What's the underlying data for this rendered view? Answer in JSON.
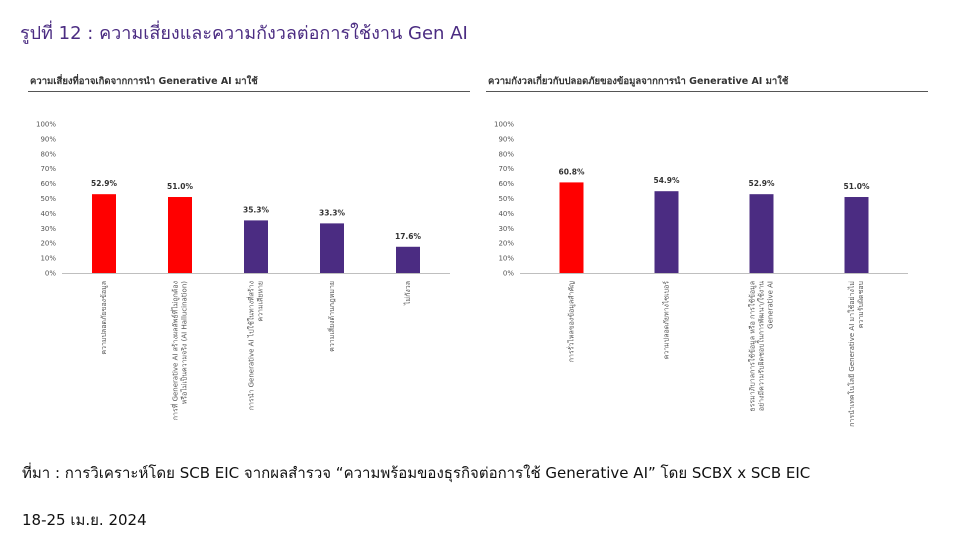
{
  "page": {
    "title": "รูปที่ 12 : ความเสี่ยงและความกังวลต่อการใช้งาน Gen AI",
    "source_line1": "ที่มา : การวิเคราะห์โดย SCB EIC จากผลสำรวจ “ความพร้อมของธุรกิจต่อการใช้ Generative AI” โดย SCBX x SCB EIC",
    "source_line2": "18-25 เม.ย. 2024"
  },
  "colors": {
    "highlight": "#ff0000",
    "base": "#4b2c82",
    "title": "#4b2c82"
  },
  "chart_data": [
    {
      "type": "bar",
      "title": "ความเสี่ยงที่อาจเกิดจากการนำ  Generative AI มาใช้",
      "categories": [
        "ความปลอดภัยของข้อมูล",
        "การที่ Generative AI สร้างผลลัพธ์ที่ไม่ถูกต้อง หรือไม่เป็นความจริง (AI Hallucination)",
        "การนำ Generative AI ไปใช้ในทางที่สร้าง ความเสียหาย",
        "ความเสี่ยงด้านกฎหมาย",
        "ไม่กังวล"
      ],
      "category_lines": [
        [
          "ความปลอดภัยของข้อมูล"
        ],
        [
          "การที่ Generative AI สร้างผลลัพธ์ที่ไม่ถูกต้อง",
          "หรือไม่เป็นความจริง (AI Hallucination)"
        ],
        [
          "การนำ Generative AI ไปใช้ในทางที่สร้าง",
          "ความเสียหาย"
        ],
        [
          "ความเสี่ยงด้านกฎหมาย"
        ],
        [
          "ไม่กังวล"
        ]
      ],
      "values": [
        52.9,
        51.0,
        35.3,
        33.3,
        17.6
      ],
      "labels": [
        "52.9%",
        "51.0%",
        "35.3%",
        "33.3%",
        "17.6%"
      ],
      "highlight": [
        true,
        true,
        false,
        false,
        false
      ],
      "yticks": [
        "0%",
        "10%",
        "20%",
        "30%",
        "40%",
        "50%",
        "60%",
        "70%",
        "80%",
        "90%",
        "100%"
      ],
      "ylim": [
        0,
        100
      ],
      "grid": false,
      "legend": "none"
    },
    {
      "type": "bar",
      "title": "ความกังวลเกี่ยวกับปลอดภัยของข้อมูลจากการนำ  Generative AI มาใช้",
      "categories": [
        "การรั่วไหลของข้อมูลสำคัญ",
        "ความปลอดภัยทางไซเบอร์",
        "ธรรมาภิบาลการใช้ข้อมูล หรือ การใช้ข้อมูล อย่างมีความรับผิดชอบในการพัฒนา/ใช้งาน Generative AI",
        "การนำเทคโนโลยี Generative AI มาใช้อย่างไม่ ความรับผิดชอบ"
      ],
      "category_lines": [
        [
          "การรั่วไหลของข้อมูลสำคัญ"
        ],
        [
          "ความปลอดภัยทางไซเบอร์"
        ],
        [
          "ธรรมาภิบาลการใช้ข้อมูล หรือ การใช้ข้อมูล",
          "อย่างมีความรับผิดชอบในการพัฒนา/ใช้งาน",
          "Generative AI"
        ],
        [
          "การนำเทคโนโลยี Generative AI มาใช้อย่างไม่",
          "ความรับผิดชอบ"
        ]
      ],
      "values": [
        60.8,
        54.9,
        52.9,
        51.0
      ],
      "labels": [
        "60.8%",
        "54.9%",
        "52.9%",
        "51.0%"
      ],
      "highlight": [
        true,
        false,
        false,
        false
      ],
      "yticks": [
        "0%",
        "10%",
        "20%",
        "30%",
        "40%",
        "50%",
        "60%",
        "70%",
        "80%",
        "90%",
        "100%"
      ],
      "ylim": [
        0,
        100
      ],
      "grid": false,
      "legend": "none"
    }
  ]
}
